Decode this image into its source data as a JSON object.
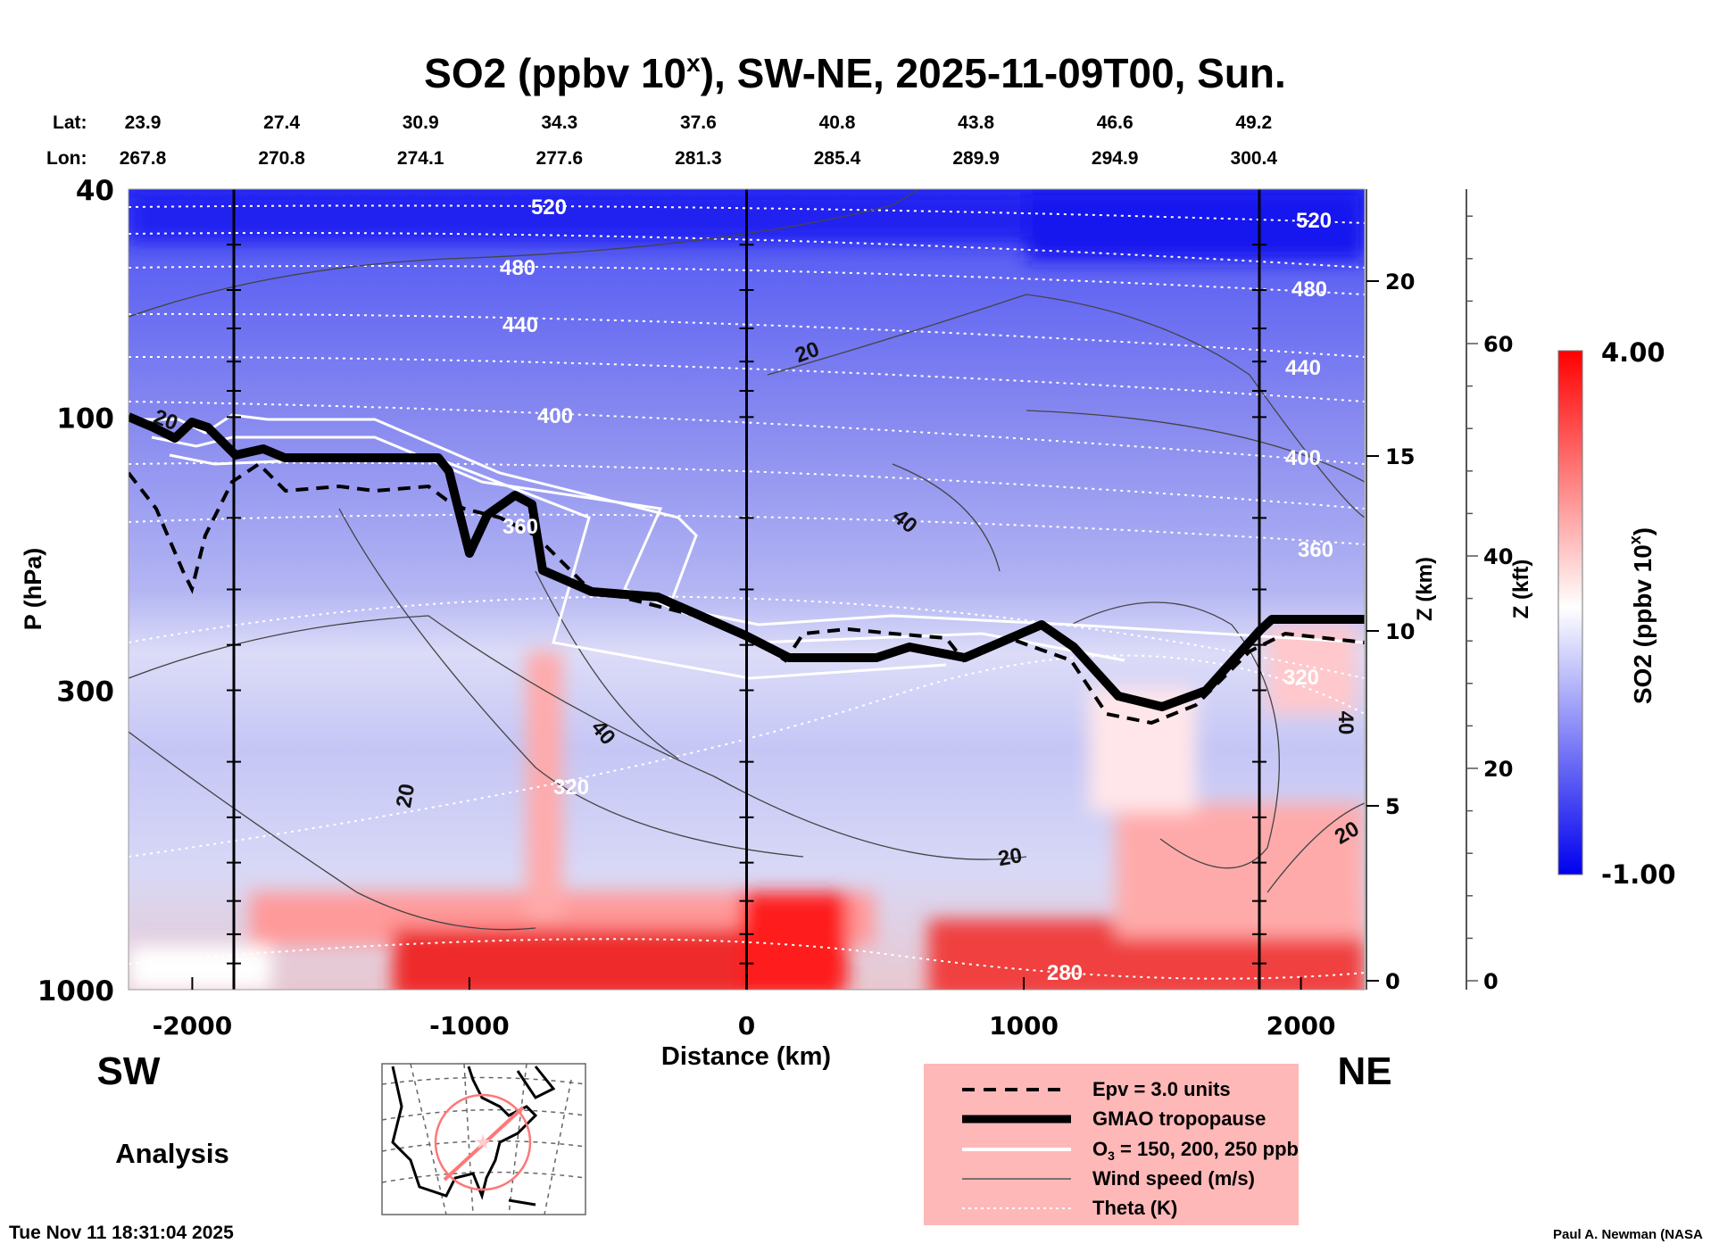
{
  "title": {
    "prefix": "SO2 (ppbv 10",
    "sup": "x",
    "suffix": "), SW-NE, 2025-11-09T00, Sun."
  },
  "lat": {
    "label": "Lat:",
    "values": [
      "23.9",
      "27.4",
      "30.9",
      "34.3",
      "37.6",
      "40.8",
      "43.8",
      "46.6",
      "49.2"
    ]
  },
  "lon": {
    "label": "Lon:",
    "values": [
      "267.8",
      "270.8",
      "274.1",
      "277.6",
      "281.3",
      "285.4",
      "289.9",
      "294.9",
      "300.4"
    ]
  },
  "chart_data": {
    "type": "heatmap",
    "title": "SO2 (ppbv 10^x), SW-NE, 2025-11-09T00, Sun.",
    "xlabel": "Distance (km)",
    "ylabel": "P (hPa)",
    "y2label": "Z (km)",
    "y3label": "Z (kft)",
    "xlim": [
      -2230,
      2230
    ],
    "ylim": [
      1000,
      40
    ],
    "yscale": "log",
    "xticks": [
      "-2000",
      "-1000",
      "0",
      "1000",
      "2000"
    ],
    "xtick_values": [
      -2000,
      -1000,
      0,
      1000,
      2000
    ],
    "yticks": [
      "40",
      "100",
      "300",
      "1000"
    ],
    "ytick_values": [
      40,
      100,
      300,
      1000
    ],
    "zkm_ticks": [
      "0",
      "5",
      "10",
      "15",
      "20"
    ],
    "zkm_values": [
      0,
      5,
      10,
      15,
      20
    ],
    "zkft_ticks": [
      "0",
      "20",
      "40",
      "60"
    ],
    "zkft_values": [
      0,
      20,
      40,
      60
    ],
    "colorbar": {
      "label_prefix": "SO2 (ppbv 10",
      "label_sup": "x",
      "label_suffix": ")",
      "min_label": "-1.00",
      "max_label": "4.00",
      "min": -1.0,
      "max": 4.0,
      "colors": [
        "#0000ff",
        "#ffffff",
        "#ff0000"
      ]
    },
    "theta_labels": [
      "520",
      "480",
      "440",
      "400",
      "360",
      "320",
      "280",
      "520",
      "480",
      "440",
      "400",
      "360",
      "320"
    ],
    "wind_labels": [
      "20",
      "20",
      "40",
      "40",
      "20",
      "20",
      "40",
      "20"
    ],
    "section_markers_km": [
      -1850,
      0,
      1850
    ]
  },
  "direction": {
    "left": "SW",
    "right": "NE"
  },
  "analysis_label": "Analysis",
  "legend": [
    {
      "label": "Epv = 3.0 units",
      "style": "dashed-black"
    },
    {
      "label": "GMAO tropopause",
      "style": "thick-black"
    },
    {
      "label_prefix": "O",
      "label_sub": "3",
      "label_suffix": " = 150, 200, 250 ppb",
      "style": "white"
    },
    {
      "label": "Wind speed (m/s)",
      "style": "thin-gray"
    },
    {
      "label": "Theta (K)",
      "style": "dotted-white"
    }
  ],
  "legend_bg": "#ffb8b8",
  "footer": {
    "timestamp": "Tue Nov 11 18:31:04 2025",
    "credit": "Paul A. Newman (NASA"
  }
}
